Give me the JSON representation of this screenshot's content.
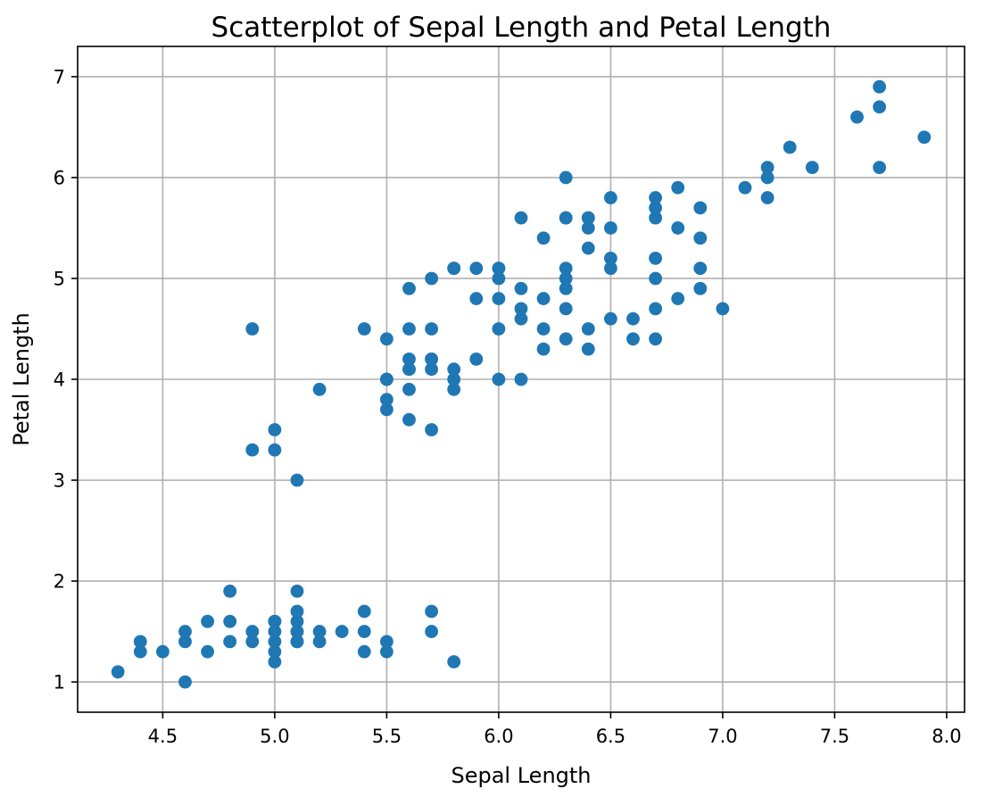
{
  "chart_data": {
    "type": "scatter",
    "title": "Scatterplot of Sepal Length and Petal Length",
    "xlabel": "Sepal Length",
    "ylabel": "Petal Length",
    "xlim": [
      4.12,
      8.08
    ],
    "ylim": [
      0.7,
      7.3
    ],
    "xticks": [
      4.5,
      5.0,
      5.5,
      6.0,
      6.5,
      7.0,
      7.5,
      8.0
    ],
    "xtick_labels": [
      "4.5",
      "5.0",
      "5.5",
      "6.0",
      "6.5",
      "7.0",
      "7.5",
      "8.0"
    ],
    "yticks": [
      1,
      2,
      3,
      4,
      5,
      6,
      7
    ],
    "ytick_labels": [
      "1",
      "2",
      "3",
      "4",
      "5",
      "6",
      "7"
    ],
    "grid": true,
    "color": "#1f77b4",
    "series": [
      {
        "x": [
          4.3,
          4.4,
          4.4,
          4.5,
          4.6,
          4.6,
          4.6,
          4.7,
          4.7,
          4.8,
          4.8,
          4.8,
          4.9,
          4.9,
          5.0,
          5.0,
          5.0,
          5.0,
          5.0,
          5.0,
          5.1,
          5.1,
          5.1,
          5.1,
          5.1,
          5.1,
          5.1,
          5.2,
          5.2,
          5.3,
          5.4,
          5.4,
          5.4,
          5.5,
          5.5,
          5.7,
          5.7,
          5.8,
          5.1,
          4.9,
          4.9,
          5.0,
          5.0,
          5.2,
          5.4,
          5.5,
          5.5,
          5.5,
          5.5,
          5.5,
          5.6,
          5.6,
          5.6,
          5.6,
          5.6,
          5.6,
          5.6,
          5.7,
          5.7,
          5.7,
          5.7,
          5.7,
          5.7,
          5.8,
          5.8,
          5.8,
          5.8,
          5.8,
          5.9,
          5.9,
          5.9,
          6.0,
          6.0,
          6.0,
          6.0,
          6.0,
          6.0,
          6.1,
          6.1,
          6.1,
          6.1,
          6.1,
          6.2,
          6.2,
          6.2,
          6.2,
          6.3,
          6.3,
          6.3,
          6.3,
          6.3,
          6.3,
          6.3,
          6.3,
          6.4,
          6.4,
          6.4,
          6.4,
          6.4,
          6.4,
          6.5,
          6.5,
          6.5,
          6.5,
          6.5,
          6.6,
          6.6,
          6.7,
          6.7,
          6.7,
          6.7,
          6.7,
          6.7,
          6.7,
          6.8,
          6.8,
          6.8,
          6.9,
          6.9,
          6.9,
          6.9,
          7.0,
          7.1,
          7.2,
          7.2,
          7.2,
          7.3,
          7.4,
          7.6,
          7.7,
          7.7,
          7.7,
          7.9
        ],
        "y": [
          1.1,
          1.3,
          1.4,
          1.3,
          1.0,
          1.4,
          1.5,
          1.3,
          1.6,
          1.4,
          1.6,
          1.9,
          1.4,
          1.5,
          1.2,
          1.3,
          1.4,
          1.5,
          1.6,
          1.6,
          1.4,
          1.5,
          1.5,
          1.6,
          1.7,
          1.9,
          1.4,
          1.4,
          1.5,
          1.5,
          1.3,
          1.5,
          1.7,
          1.3,
          1.4,
          1.5,
          1.7,
          1.2,
          3.0,
          3.3,
          4.5,
          3.3,
          3.5,
          3.9,
          4.5,
          3.7,
          3.8,
          4.0,
          4.4,
          4.0,
          3.6,
          3.9,
          4.1,
          4.2,
          4.5,
          4.9,
          4.1,
          3.5,
          4.1,
          4.2,
          4.5,
          5.0,
          4.2,
          3.9,
          4.0,
          4.1,
          5.1,
          5.1,
          4.2,
          4.8,
          5.1,
          4.0,
          4.5,
          4.8,
          5.0,
          5.1,
          5.1,
          4.0,
          4.6,
          4.7,
          4.9,
          5.6,
          4.3,
          4.5,
          4.8,
          5.4,
          4.4,
          4.7,
          4.9,
          5.0,
          5.1,
          5.6,
          6.0,
          5.6,
          4.3,
          4.5,
          5.3,
          5.5,
          5.6,
          5.6,
          4.6,
          5.1,
          5.2,
          5.5,
          5.8,
          4.4,
          4.6,
          4.4,
          4.7,
          5.0,
          5.2,
          5.6,
          5.7,
          5.8,
          4.8,
          5.5,
          5.9,
          4.9,
          5.1,
          5.4,
          5.7,
          4.7,
          5.9,
          5.8,
          6.0,
          6.1,
          6.3,
          6.1,
          6.6,
          6.1,
          6.7,
          6.9,
          6.4
        ]
      }
    ]
  }
}
